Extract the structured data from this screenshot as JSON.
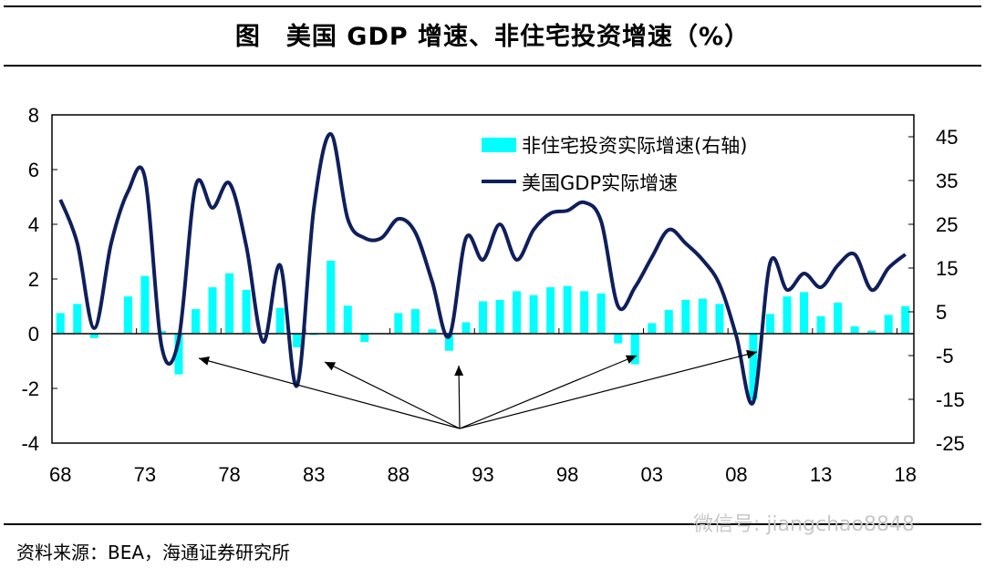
{
  "title": "图　美国 GDP 增速、非住宅投资增速（%）",
  "source": "资料来源：BEA，海通证券研究所",
  "watermark": "微信号: jiangchao8848",
  "chart_data": {
    "type": "bar+line",
    "categories": [
      "68",
      "69",
      "70",
      "71",
      "72",
      "73",
      "74",
      "75",
      "76",
      "77",
      "78",
      "79",
      "80",
      "81",
      "82",
      "83",
      "84",
      "85",
      "86",
      "87",
      "88",
      "89",
      "90",
      "91",
      "92",
      "93",
      "94",
      "95",
      "96",
      "97",
      "98",
      "99",
      "00",
      "01",
      "02",
      "03",
      "04",
      "05",
      "06",
      "07",
      "08",
      "09",
      "10",
      "11",
      "12",
      "13",
      "14",
      "15",
      "16",
      "17",
      "18"
    ],
    "x_tick_labels": [
      "68",
      "73",
      "78",
      "83",
      "88",
      "93",
      "98",
      "03",
      "08",
      "13",
      "18"
    ],
    "left_axis": {
      "ylim": [
        -4,
        8
      ],
      "ticks": [
        -4,
        -2,
        0,
        2,
        4,
        6,
        8
      ]
    },
    "right_axis": {
      "ylim": [
        -25,
        50
      ],
      "ticks": [
        -25,
        -15,
        -5,
        5,
        15,
        25,
        35,
        45
      ]
    },
    "series": [
      {
        "name": "非住宅投资实际增速(右轴)",
        "type": "bar",
        "axis": "right",
        "color": "#00FFFF",
        "values": [
          4.7,
          6.8,
          -1.0,
          0.0,
          8.5,
          13.2,
          0.6,
          -9.3,
          5.6,
          10.6,
          13.8,
          10.0,
          0.0,
          5.9,
          -3.1,
          -0.3,
          16.7,
          6.4,
          -1.9,
          0.0,
          4.7,
          5.6,
          1.0,
          -3.9,
          2.6,
          7.4,
          7.7,
          9.7,
          8.8,
          10.6,
          10.9,
          9.7,
          9.2,
          -2.2,
          -7.0,
          2.4,
          5.4,
          7.7,
          8.0,
          6.8,
          0.3,
          -15.0,
          4.5,
          8.5,
          9.5,
          4.0,
          7.1,
          1.7,
          0.7,
          4.3,
          6.3
        ]
      },
      {
        "name": "美国GDP实际增速",
        "type": "line",
        "axis": "left",
        "color": "#0F1F5C",
        "values": [
          4.9,
          3.3,
          0.2,
          3.3,
          5.2,
          5.7,
          -0.5,
          -0.2,
          5.4,
          4.6,
          5.5,
          3.2,
          -0.3,
          2.5,
          -1.9,
          4.6,
          7.3,
          4.2,
          3.5,
          3.5,
          4.2,
          3.7,
          1.9,
          -0.1,
          3.5,
          2.7,
          4.0,
          2.7,
          3.8,
          4.4,
          4.5,
          4.8,
          4.1,
          1.0,
          1.7,
          2.8,
          3.8,
          3.3,
          2.7,
          1.8,
          -0.1,
          -2.5,
          2.6,
          1.6,
          2.2,
          1.7,
          2.5,
          2.9,
          1.6,
          2.4,
          2.9
        ]
      }
    ],
    "annotations": {
      "arrows_point_to": [
        "75",
        "82",
        "91",
        "02",
        "09"
      ]
    },
    "legend": "top-right",
    "grid": false
  }
}
